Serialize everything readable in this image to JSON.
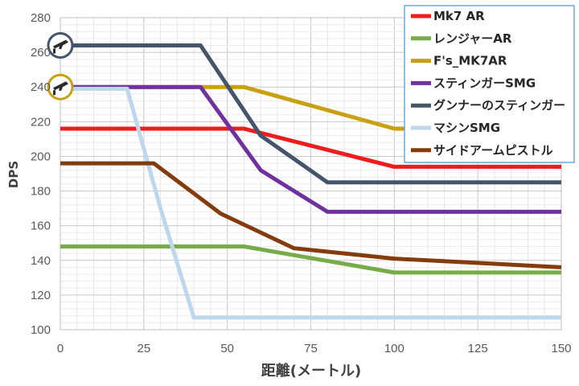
{
  "chart_data": {
    "type": "line",
    "title": "",
    "xlabel": "距離(メートル)",
    "ylabel": "DPS",
    "xlim": [
      0,
      150
    ],
    "ylim": [
      100,
      280
    ],
    "x_ticks": [
      "0",
      "25",
      "50",
      "75",
      "100",
      "125",
      "150"
    ],
    "y_ticks": [
      "100",
      "120",
      "140",
      "160",
      "180",
      "200",
      "220",
      "240",
      "260",
      "280"
    ],
    "x_tick_values": [
      0,
      25,
      50,
      75,
      100,
      125,
      150
    ],
    "y_tick_values": [
      100,
      120,
      140,
      160,
      180,
      200,
      220,
      240,
      260,
      280
    ],
    "grid": true,
    "legend_position": "top-right",
    "series": [
      {
        "name": "Mk7 AR",
        "color": "#ee1c1c",
        "points": [
          [
            0,
            216
          ],
          [
            55,
            216
          ],
          [
            100,
            194
          ],
          [
            150,
            194
          ]
        ]
      },
      {
        "name": "レンジャーAR",
        "color": "#77ac4a",
        "points": [
          [
            0,
            148
          ],
          [
            55,
            148
          ],
          [
            100,
            133
          ],
          [
            150,
            133
          ]
        ]
      },
      {
        "name": "F's_MK7AR",
        "color": "#c9a012",
        "points": [
          [
            0,
            240
          ],
          [
            55,
            240
          ],
          [
            100,
            216
          ],
          [
            150,
            216
          ]
        ]
      },
      {
        "name": "スティンガーSMG",
        "color": "#7030a0",
        "points": [
          [
            0,
            240
          ],
          [
            42,
            240
          ],
          [
            60,
            192
          ],
          [
            80,
            168
          ],
          [
            150,
            168
          ]
        ]
      },
      {
        "name": "グンナーのスティンガー",
        "color": "#44546a",
        "points": [
          [
            0,
            264
          ],
          [
            42,
            264
          ],
          [
            60,
            212
          ],
          [
            80,
            185
          ],
          [
            150,
            185
          ]
        ]
      },
      {
        "name": "マシンSMG",
        "color": "#bdd7ee",
        "points": [
          [
            0,
            239
          ],
          [
            20,
            239
          ],
          [
            30,
            170
          ],
          [
            40,
            107
          ],
          [
            150,
            107
          ]
        ]
      },
      {
        "name": "サイドアームピストル",
        "color": "#843c0c",
        "points": [
          [
            0,
            196
          ],
          [
            28,
            196
          ],
          [
            48,
            167
          ],
          [
            70,
            147
          ],
          [
            100,
            141
          ],
          [
            150,
            136
          ]
        ]
      }
    ]
  },
  "markers": [
    {
      "icon": "gun-icon",
      "ring_color": "#44546a",
      "series": "グンナーのスティンガー",
      "x": 0,
      "y": 264
    },
    {
      "icon": "gun-icon",
      "ring_color": "#c9a012",
      "series": "F's_MK7AR",
      "x": 0,
      "y": 240
    }
  ]
}
